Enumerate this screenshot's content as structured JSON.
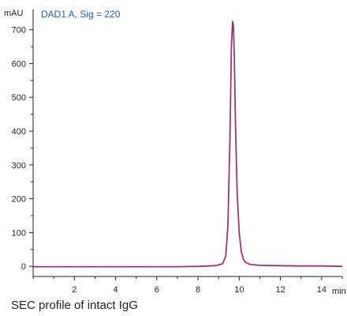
{
  "caption": "SEC profile of intact IgG",
  "chart_data": {
    "type": "line",
    "title": "DAD1 A, Sig = 220",
    "xlabel": "min",
    "ylabel": "mAU",
    "xlim": [
      0,
      15
    ],
    "ylim": [
      -30,
      760
    ],
    "x_ticks": [
      2,
      4,
      6,
      8,
      10,
      12,
      14
    ],
    "y_ticks": [
      0,
      100,
      200,
      300,
      400,
      500,
      600,
      700
    ],
    "grid": false,
    "series": [
      {
        "color": "#b0336e",
        "x": [
          0,
          2,
          4,
          6,
          7,
          8,
          8.5,
          8.8,
          9.0,
          9.2,
          9.35,
          9.45,
          9.55,
          9.62,
          9.68,
          9.72,
          9.76,
          9.82,
          9.9,
          10.0,
          10.1,
          10.2,
          10.3,
          10.5,
          11,
          12,
          13,
          14,
          15
        ],
        "y": [
          -1,
          -1,
          -1,
          -1,
          -1,
          0,
          1,
          2,
          4,
          8,
          30,
          120,
          380,
          650,
          725,
          710,
          620,
          420,
          220,
          100,
          45,
          22,
          12,
          6,
          3,
          2,
          1,
          1,
          0
        ]
      }
    ]
  }
}
